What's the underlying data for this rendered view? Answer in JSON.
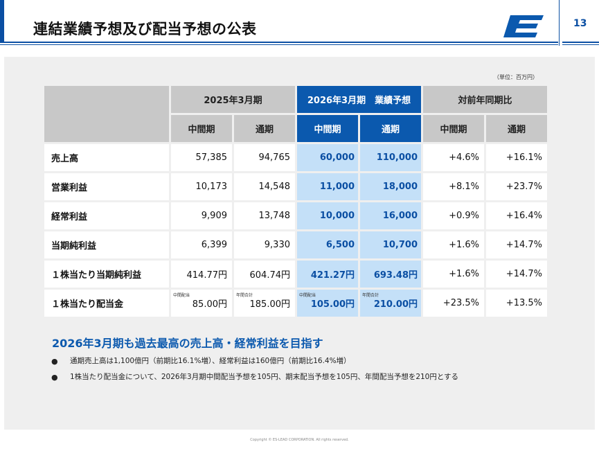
{
  "header": {
    "title": "連結業績予想及び配当予想の公表",
    "page_number": "13",
    "logo_letter": "E"
  },
  "unit_note": "（単位：百万円）",
  "table": {
    "header_group": {
      "fy2025": "2025年3月期",
      "fy2026": "2026年3月期　業績予想",
      "yoy": "対前年同期比"
    },
    "subheaders": [
      "中間期",
      "通期",
      "中間期",
      "通期",
      "中間期",
      "通期"
    ],
    "rows": [
      {
        "label": "売上高",
        "cells": [
          "57,385",
          "94,765",
          "60,000",
          "110,000",
          "+4.6%",
          "+16.1%"
        ]
      },
      {
        "label": "営業利益",
        "cells": [
          "10,173",
          "14,548",
          "11,000",
          "18,000",
          "+8.1%",
          "+23.7%"
        ]
      },
      {
        "label": "経常利益",
        "cells": [
          "9,909",
          "13,748",
          "10,000",
          "16,000",
          "+0.9%",
          "+16.4%"
        ]
      },
      {
        "label": "当期純利益",
        "cells": [
          "6,399",
          "9,330",
          "6,500",
          "10,700",
          "+1.6%",
          "+14.7%"
        ]
      },
      {
        "label": "１株当たり当期純利益",
        "cells": [
          "414.77円",
          "604.74円",
          "421.27円",
          "693.48円",
          "+1.6%",
          "+14.7%"
        ]
      },
      {
        "label": "１株当たり配当金",
        "cells": [
          "85.00円",
          "185.00円",
          "105.00円",
          "210.00円",
          "+23.5%",
          "+13.5%"
        ],
        "notes": [
          "中間配当",
          "年間合計",
          "中間配当",
          "年間合計"
        ]
      }
    ]
  },
  "summary": {
    "headline": "2026年3月期も過去最高の売上高・経常利益を目指す",
    "bullets": [
      "通期売上高は1,100億円（前期比16.1%増）、経常利益は160億円（前期比16.4%増）",
      "1株当たり配当金について、2026年3月期中間配当予想を105円、期末配当予想を105円、年間配当予想を210円とする"
    ],
    "bullet_glyph": "●"
  },
  "footer": {
    "copyright": "Copyright © ES-LEAD CORPORATION. All rights reserved."
  },
  "colors": {
    "brand_blue": "#0b59ae",
    "forecast_cell": "#c4e0f8",
    "header_gray": "#c8c8c8"
  }
}
